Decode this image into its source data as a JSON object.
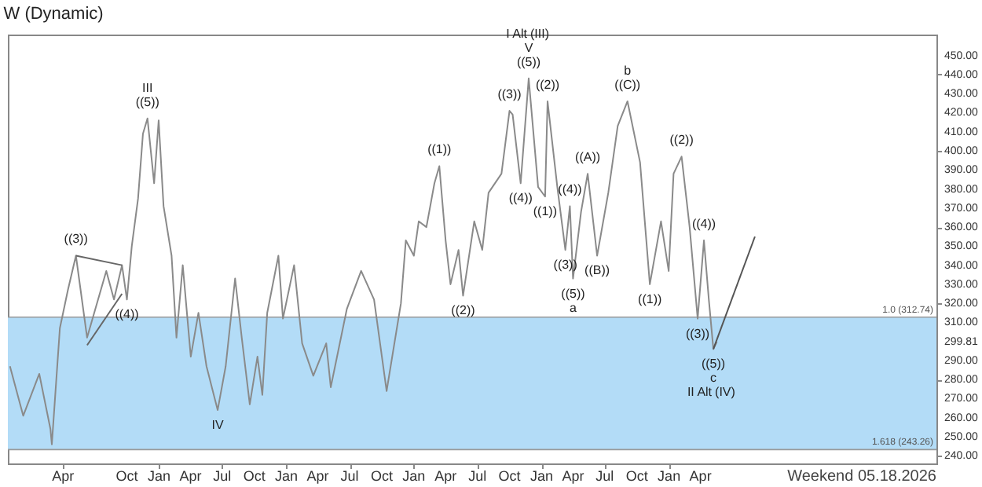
{
  "chart_data": {
    "type": "line",
    "title": "W (Dynamic)",
    "series": [
      {
        "color": "#8a8a8a",
        "x": [
          "2020-10-31",
          "2020-12-08",
          "2021-01-23",
          "2021-02-24",
          "2021-02-28",
          "2021-03-23",
          "2021-04-15",
          "2021-05-08",
          "2021-06-09",
          "2021-08-03",
          "2021-08-25",
          "2021-09-17",
          "2021-10-01",
          "2021-10-15",
          "2021-11-02",
          "2021-11-16",
          "2021-11-29",
          "2021-12-18",
          "2021-12-31",
          "2022-01-14",
          "2022-02-06",
          "2022-02-20",
          "2022-03-10",
          "2022-04-02",
          "2022-04-24",
          "2022-05-17",
          "2022-06-18",
          "2022-07-11",
          "2022-08-07",
          "2022-08-26",
          "2022-09-18",
          "2022-10-10",
          "2022-10-24",
          "2022-11-07",
          "2022-12-09",
          "2022-12-22",
          "2023-01-23",
          "2023-02-15",
          "2023-03-19",
          "2023-04-25",
          "2023-05-08",
          "2023-06-23",
          "2023-08-03",
          "2023-09-09",
          "2023-10-15",
          "2023-11-25",
          "2023-12-09",
          "2024-01-01",
          "2024-01-15",
          "2024-02-06",
          "2024-02-29",
          "2024-03-14",
          "2024-04-01",
          "2024-04-15",
          "2024-05-08",
          "2024-05-21",
          "2024-06-22",
          "2024-07-15",
          "2024-08-02",
          "2024-09-08",
          "2024-10-01",
          "2024-10-10",
          "2024-11-02",
          "2024-11-25",
          "2024-12-22",
          "2025-01-11",
          "2025-01-18",
          "2025-02-15",
          "2025-03-10",
          "2025-03-23",
          "2025-04-01",
          "2025-04-24",
          "2025-05-13",
          "2025-06-09",
          "2025-07-11",
          "2025-08-07",
          "2025-09-04",
          "2025-10-10",
          "2025-11-07",
          "2025-12-09",
          "2025-12-31",
          "2026-01-14",
          "2026-02-06",
          "2026-03-01",
          "2026-03-24",
          "2026-04-11",
          "2026-04-25",
          "2026-05-08",
          "2026-05-18"
        ],
        "values": [
          287,
          261,
          283,
          254,
          246,
          307,
          327,
          345,
          302,
          337,
          322,
          340,
          322,
          350,
          375,
          409,
          417,
          383,
          416,
          371,
          345,
          302,
          340,
          292,
          315,
          287,
          264,
          287,
          333,
          302,
          267,
          292,
          272,
          315,
          345,
          312,
          340,
          299,
          282,
          299,
          276,
          317,
          337,
          322,
          274,
          320,
          353,
          345,
          363,
          360,
          383,
          392,
          353,
          330,
          348,
          324,
          363,
          348,
          378,
          388,
          421,
          419,
          383,
          438,
          381,
          376,
          426,
          381,
          348,
          371,
          333,
          368,
          388,
          345,
          378,
          413,
          426,
          394,
          330,
          363,
          337,
          388,
          397,
          360,
          312,
          353,
          322,
          296,
          299.81
        ]
      },
      {
        "color": "#555555",
        "x": [
          "2026-05-08",
          "2026-09-04"
        ],
        "values": [
          296,
          355
        ]
      },
      {
        "color": "#666666",
        "x": [
          "2021-05-08",
          "2021-09-17"
        ],
        "values": [
          345,
          340
        ]
      },
      {
        "color": "#666666",
        "x": [
          "2021-06-09",
          "2021-09-17"
        ],
        "values": [
          298,
          325
        ]
      }
    ],
    "xlim": [
      "2020-10-25",
      "2028-02-06"
    ],
    "xticks": [
      {
        "value": "2021-04-01",
        "label": "Apr"
      },
      {
        "value": "2021-10-01",
        "label": "Oct"
      },
      {
        "value": "2022-01-01",
        "label": "Jan"
      },
      {
        "value": "2022-04-01",
        "label": "Apr"
      },
      {
        "value": "2022-07-01",
        "label": "Jul"
      },
      {
        "value": "2022-10-01",
        "label": "Oct"
      },
      {
        "value": "2023-01-01",
        "label": "Jan"
      },
      {
        "value": "2023-04-01",
        "label": "Apr"
      },
      {
        "value": "2023-07-01",
        "label": "Jul"
      },
      {
        "value": "2023-10-01",
        "label": "Oct"
      },
      {
        "value": "2024-01-01",
        "label": "Jan"
      },
      {
        "value": "2024-04-01",
        "label": "Apr"
      },
      {
        "value": "2024-07-01",
        "label": "Jul"
      },
      {
        "value": "2024-10-01",
        "label": "Oct"
      },
      {
        "value": "2025-01-01",
        "label": "Jan"
      },
      {
        "value": "2025-04-01",
        "label": "Apr"
      },
      {
        "value": "2025-07-01",
        "label": "Jul"
      },
      {
        "value": "2025-10-01",
        "label": "Oct"
      },
      {
        "value": "2026-01-01",
        "label": "Jan"
      },
      {
        "value": "2026-04-01",
        "label": "Apr"
      }
    ],
    "ylim": [
      236,
      461
    ],
    "yticks": [
      {
        "value": 240,
        "label": "240.00"
      },
      {
        "value": 250,
        "label": "250.00"
      },
      {
        "value": 260,
        "label": "260.00"
      },
      {
        "value": 270,
        "label": "270.00"
      },
      {
        "value": 280,
        "label": "280.00"
      },
      {
        "value": 290,
        "label": "290.00"
      },
      {
        "value": 299.81,
        "label": "299.81"
      },
      {
        "value": 310,
        "label": "310.00"
      },
      {
        "value": 320,
        "label": "320.00"
      },
      {
        "value": 330,
        "label": "330.00"
      },
      {
        "value": 340,
        "label": "340.00"
      },
      {
        "value": 350,
        "label": "350.00"
      },
      {
        "value": 360,
        "label": "360.00"
      },
      {
        "value": 370,
        "label": "370.00"
      },
      {
        "value": 380,
        "label": "380.00"
      },
      {
        "value": 390,
        "label": "390.00"
      },
      {
        "value": 400,
        "label": "400.00"
      },
      {
        "value": 410,
        "label": "410.00"
      },
      {
        "value": 420,
        "label": "420.00"
      },
      {
        "value": 430,
        "label": "430.00"
      },
      {
        "value": 440,
        "label": "440.00"
      },
      {
        "value": 450,
        "label": "450.00"
      }
    ],
    "bands": [
      {
        "axis": "y",
        "from": 243.26,
        "to": 312.74,
        "color": "#b3dcf7"
      }
    ],
    "ref_lines": [
      {
        "axis": "y",
        "value": 312.74,
        "label": "1.0 (312.74)",
        "color": "#999999"
      },
      {
        "axis": "y",
        "value": 243.26,
        "label": "1.618 (243.26)",
        "color": "#999999"
      }
    ],
    "annotations": [
      {
        "text": "((3))",
        "x": "2021-05-08",
        "y": 345
      },
      {
        "text": "((4))",
        "x": "2021-10-01",
        "y": 322
      },
      {
        "text": "III",
        "x": "2021-11-29",
        "y": 417
      },
      {
        "text": "((5))",
        "x": "2021-11-29",
        "y": 417
      },
      {
        "text": "IV",
        "x": "2022-06-18",
        "y": 264
      },
      {
        "text": "((1))",
        "x": "2024-03-14",
        "y": 392
      },
      {
        "text": "((2))",
        "x": "2024-05-21",
        "y": 324
      },
      {
        "text": "((3))",
        "x": "2024-10-01",
        "y": 421
      },
      {
        "text": "((4))",
        "x": "2024-11-02",
        "y": 383
      },
      "I Alt",
      "(III)",
      {
        "text": "V",
        "x": "2024-11-25",
        "y": 438
      },
      {
        "text": "((5))",
        "x": "2024-11-25",
        "y": 438
      },
      {
        "text": "((1))",
        "x": "2025-01-11",
        "y": 376
      },
      {
        "text": "((2))",
        "x": "2025-01-18",
        "y": 426
      },
      {
        "text": "((3))",
        "x": "2025-03-10",
        "y": 348
      },
      {
        "text": "((4))",
        "x": "2025-03-23",
        "y": 371
      },
      {
        "text": "((5))",
        "x": "2025-04-01",
        "y": 333
      },
      {
        "text": "a",
        "x": "2025-04-01",
        "y": 333
      },
      {
        "text": "((A))",
        "x": "2025-05-13",
        "y": 388
      },
      {
        "text": "((B))",
        "x": "2025-06-09",
        "y": 345
      },
      {
        "text": "b",
        "x": "2025-09-04",
        "y": 426
      },
      {
        "text": "((C))",
        "x": "2025-09-04",
        "y": 426
      },
      {
        "text": "((1))",
        "x": "2025-11-07",
        "y": 330
      },
      {
        "text": "((2))",
        "x": "2026-02-06",
        "y": 397
      },
      {
        "text": "((3))",
        "x": "2026-03-24",
        "y": 312
      },
      {
        "text": "((4))",
        "x": "2026-04-11",
        "y": 353
      },
      "II Alt",
      "(IV)",
      {
        "text": "((5))",
        "x": "2026-05-08",
        "y": 296
      },
      {
        "text": "c",
        "x": "2026-05-08",
        "y": 296
      },
      "Weekend 05.18.2026"
    ],
    "grid": false,
    "line_style": "solid",
    "marker": "none"
  }
}
